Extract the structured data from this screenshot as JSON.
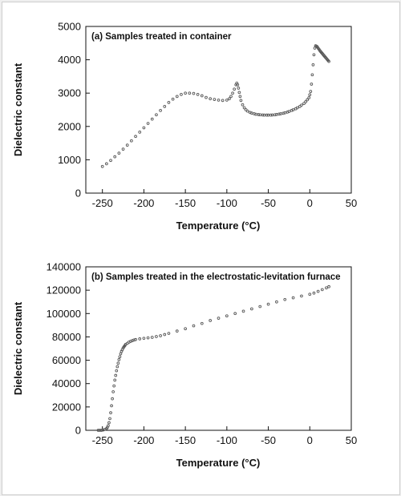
{
  "chart_data": [
    {
      "type": "scatter",
      "title": "(a) Samples treated in container",
      "xlabel": "Temperature (°C)",
      "ylabel": "Dielectric constant",
      "xlim": [
        -270,
        50
      ],
      "ylim": [
        0,
        5000
      ],
      "xticks": [
        -250,
        -200,
        -150,
        -100,
        -50,
        0,
        50
      ],
      "yticks": [
        0,
        1000,
        2000,
        3000,
        4000,
        5000
      ],
      "xtick_labels": [
        "-250",
        "-200",
        "-150",
        "-100",
        "-50",
        "0",
        "50"
      ],
      "ytick_labels": [
        "0",
        "1000",
        "2000",
        "3000",
        "4000",
        "5000"
      ],
      "grid": false,
      "marker_color": "#555555",
      "series": [
        {
          "x": [
            -250,
            -245,
            -240,
            -235,
            -230,
            -225,
            -220,
            -215,
            -210,
            -205,
            -200,
            -195,
            -190,
            -185,
            -180,
            -175,
            -170,
            -165,
            -160,
            -155,
            -150,
            -145,
            -140,
            -135,
            -130,
            -125,
            -120,
            -115,
            -110,
            -105,
            -100,
            -97,
            -95,
            -93,
            -91,
            -89,
            -88,
            -87,
            -86,
            -85,
            -84,
            -83,
            -81,
            -79,
            -77,
            -75,
            -72,
            -70,
            -67,
            -65,
            -62,
            -60,
            -57,
            -55,
            -52,
            -50,
            -47,
            -45,
            -42,
            -40,
            -37,
            -35,
            -32,
            -30,
            -27,
            -25,
            -22,
            -20,
            -17,
            -15,
            -12,
            -10,
            -7,
            -5,
            -3,
            -1,
            0,
            1,
            2,
            3,
            4,
            5,
            6,
            7,
            8,
            9,
            10,
            11,
            12,
            13,
            14,
            15,
            16,
            17,
            18,
            19,
            20,
            21,
            22,
            23
          ],
          "y": [
            800,
            880,
            980,
            1090,
            1200,
            1320,
            1440,
            1570,
            1700,
            1830,
            1960,
            2090,
            2220,
            2350,
            2480,
            2600,
            2720,
            2820,
            2900,
            2960,
            3000,
            3000,
            2990,
            2960,
            2920,
            2870,
            2830,
            2810,
            2790,
            2780,
            2790,
            2830,
            2900,
            3000,
            3120,
            3250,
            3300,
            3250,
            3150,
            3020,
            2900,
            2780,
            2650,
            2560,
            2500,
            2460,
            2420,
            2400,
            2380,
            2365,
            2355,
            2350,
            2345,
            2340,
            2340,
            2340,
            2340,
            2345,
            2350,
            2360,
            2370,
            2380,
            2395,
            2410,
            2430,
            2450,
            2480,
            2500,
            2530,
            2560,
            2600,
            2640,
            2690,
            2740,
            2800,
            2860,
            2950,
            3050,
            3270,
            3550,
            3850,
            4150,
            4350,
            4420,
            4410,
            4390,
            4350,
            4320,
            4280,
            4250,
            4220,
            4190,
            4160,
            4130,
            4100,
            4070,
            4040,
            4010,
            3980,
            3950
          ]
        }
      ]
    },
    {
      "type": "scatter",
      "title": "(b) Samples treated in the electrostatic-levitation furnace",
      "xlabel": "Temperature (°C)",
      "ylabel": "Dielectric constant",
      "xlim": [
        -270,
        50
      ],
      "ylim": [
        0,
        140000
      ],
      "xticks": [
        -250,
        -200,
        -150,
        -100,
        -50,
        0,
        50
      ],
      "yticks": [
        0,
        20000,
        40000,
        60000,
        80000,
        100000,
        120000,
        140000
      ],
      "xtick_labels": [
        "-250",
        "-200",
        "-150",
        "-100",
        "-50",
        "0",
        "50"
      ],
      "ytick_labels": [
        "0",
        "20000",
        "40000",
        "60000",
        "80000",
        "100000",
        "120000",
        "140000"
      ],
      "grid": false,
      "marker_color": "#555555",
      "series": [
        {
          "x": [
            -255,
            -253,
            -251,
            -249,
            -247,
            -245,
            -244,
            -243,
            -242,
            -241,
            -240,
            -239,
            -238,
            -237,
            -236,
            -235,
            -234,
            -233,
            -232,
            -231,
            -230,
            -229,
            -228,
            -227,
            -226,
            -225,
            -224,
            -223,
            -222,
            -220,
            -218,
            -216,
            -214,
            -212,
            -210,
            -205,
            -200,
            -195,
            -190,
            -185,
            -180,
            -175,
            -170,
            -160,
            -150,
            -140,
            -130,
            -120,
            -110,
            -100,
            -90,
            -80,
            -70,
            -60,
            -50,
            -40,
            -30,
            -20,
            -10,
            0,
            5,
            10,
            15,
            20,
            23
          ],
          "y": [
            0,
            0,
            0,
            300,
            800,
            1500,
            2500,
            4000,
            6500,
            10000,
            15000,
            21000,
            27000,
            33000,
            38000,
            43000,
            47000,
            51000,
            54500,
            57500,
            60500,
            63000,
            65500,
            67500,
            69000,
            70500,
            71500,
            72500,
            73500,
            74500,
            75500,
            76200,
            76800,
            77300,
            77700,
            78300,
            78800,
            79200,
            79600,
            80300,
            81000,
            82000,
            83000,
            85000,
            87000,
            89500,
            91500,
            94000,
            96000,
            98000,
            100000,
            102000,
            104000,
            106000,
            108000,
            110000,
            112000,
            113500,
            115000,
            116500,
            117500,
            119000,
            120500,
            122000,
            123000
          ]
        }
      ]
    }
  ]
}
